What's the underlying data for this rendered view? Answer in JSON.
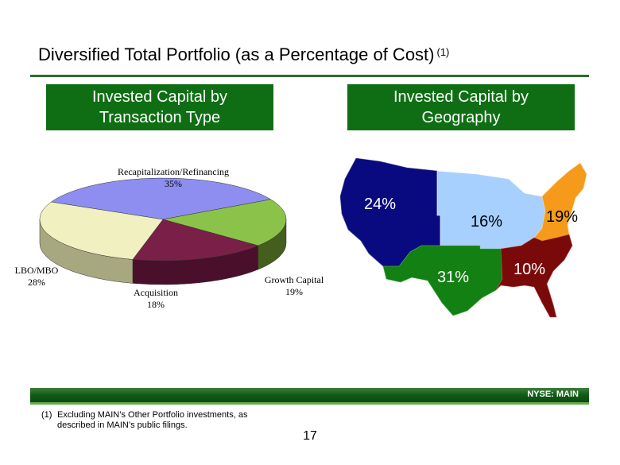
{
  "slide": {
    "title": "Diversified Total Portfolio (as a Percentage of Cost)",
    "title_note": "(1)",
    "left_header": [
      "Invested Capital by",
      "Transaction Type"
    ],
    "right_header": [
      "Invested Capital by",
      "Geography"
    ],
    "ticker": "NYSE:  MAIN",
    "footnote_num": "(1)",
    "footnote_line1": "Excluding MAIN’s Other Portfolio investments, as",
    "footnote_line2": "described in MAIN’s public filings.",
    "page_number": "17"
  },
  "chart_data": [
    {
      "type": "pie",
      "categories": [
        "Recapitalization/Refinancing",
        "Growth Capital",
        "Acquisition",
        "LBO/MBO"
      ],
      "values": [
        35,
        19,
        18,
        28
      ],
      "labels": [
        "35%",
        "19%",
        "18%",
        "28%"
      ],
      "colors": [
        "#8e8ef0",
        "#8bc34a",
        "#7a2048",
        "#f0f0c0"
      ],
      "side_colors": [
        "#4a4a90",
        "#445e1e",
        "#4a0f2a",
        "#a8a880"
      ]
    },
    {
      "type": "map",
      "regions": [
        "West",
        "Midwest",
        "Northeast",
        "Southwest",
        "Southeast"
      ],
      "values": [
        24,
        16,
        19,
        31,
        10
      ],
      "labels": [
        "24%",
        "16%",
        "19%",
        "31%",
        "10%"
      ],
      "colors": [
        "#0a0a80",
        "#a8d0ff",
        "#f59a1a",
        "#128012",
        "#7a0a0a"
      ]
    }
  ]
}
